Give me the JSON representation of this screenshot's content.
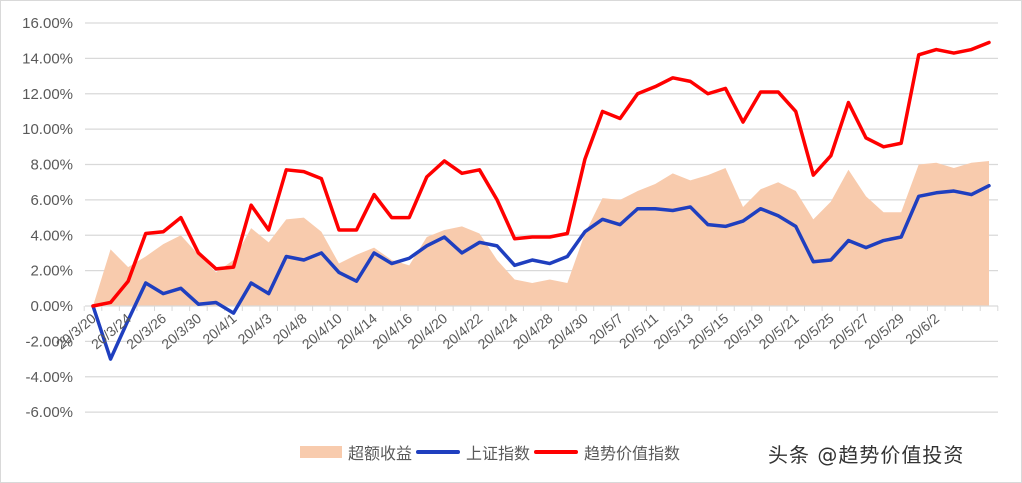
{
  "chart_data": {
    "type": "line",
    "title": "",
    "xlabel": "",
    "ylabel": "",
    "ylim": [
      -0.06,
      0.16
    ],
    "y_ticks": [
      "16.00%",
      "14.00%",
      "12.00%",
      "10.00%",
      "8.00%",
      "6.00%",
      "4.00%",
      "2.00%",
      "0.00%",
      "-2.00%",
      "-4.00%",
      "-6.00%"
    ],
    "y_tick_values": [
      16,
      14,
      12,
      10,
      8,
      6,
      4,
      2,
      0,
      -2,
      -4,
      -6
    ],
    "grid": true,
    "legend_position": "bottom",
    "x_tick_labels": [
      "20/3/20",
      "20/3/24",
      "20/3/26",
      "20/3/30",
      "20/4/1",
      "20/4/3",
      "20/4/8",
      "20/4/10",
      "20/4/14",
      "20/4/16",
      "20/4/20",
      "20/4/22",
      "20/4/24",
      "20/4/28",
      "20/4/30",
      "20/5/7",
      "20/5/11",
      "20/5/13",
      "20/5/15",
      "20/5/19",
      "20/5/21",
      "20/5/25",
      "20/5/27",
      "20/5/29",
      "20/6/2"
    ],
    "x_count": 52,
    "series": [
      {
        "name": "超额收益",
        "type": "area",
        "color": "#f8cbad",
        "values": [
          0,
          3.2,
          2.2,
          2.8,
          3.5,
          4.0,
          2.9,
          1.9,
          2.6,
          4.4,
          3.6,
          4.9,
          5.0,
          4.2,
          2.4,
          2.9,
          3.3,
          2.6,
          2.3,
          3.9,
          4.3,
          4.5,
          4.1,
          2.6,
          1.5,
          1.3,
          1.5,
          1.3,
          4.1,
          6.1,
          6.0,
          6.5,
          6.9,
          7.5,
          7.1,
          7.4,
          7.8,
          5.6,
          6.6,
          7.0,
          6.5,
          4.9,
          5.9,
          7.7,
          6.2,
          5.3,
          5.3,
          8.0,
          8.1,
          7.8,
          8.1,
          8.2
        ]
      },
      {
        "name": "上证指数",
        "type": "line",
        "color": "#1f3fbf",
        "values": [
          0,
          -3.0,
          -0.8,
          1.3,
          0.7,
          1.0,
          0.1,
          0.2,
          -0.4,
          1.3,
          0.7,
          2.8,
          2.6,
          3.0,
          1.9,
          1.4,
          3.0,
          2.4,
          2.7,
          3.4,
          3.9,
          3.0,
          3.6,
          3.4,
          2.3,
          2.6,
          2.4,
          2.8,
          4.2,
          4.9,
          4.6,
          5.5,
          5.5,
          5.4,
          5.6,
          4.6,
          4.5,
          4.8,
          5.5,
          5.1,
          4.5,
          2.5,
          2.6,
          3.7,
          3.3,
          3.7,
          3.9,
          6.2,
          6.4,
          6.5,
          6.3,
          6.8
        ]
      },
      {
        "name": "趋势价值指数",
        "type": "line",
        "color": "#ff0000",
        "values": [
          0,
          0.2,
          1.4,
          4.1,
          4.2,
          5.0,
          3.0,
          2.1,
          2.2,
          5.7,
          4.3,
          7.7,
          7.6,
          7.2,
          4.3,
          4.3,
          6.3,
          5.0,
          5.0,
          7.3,
          8.2,
          7.5,
          7.7,
          6.0,
          3.8,
          3.9,
          3.9,
          4.1,
          8.3,
          11.0,
          10.6,
          12.0,
          12.4,
          12.9,
          12.7,
          12.0,
          12.3,
          10.4,
          12.1,
          12.1,
          11.0,
          7.4,
          8.5,
          11.5,
          9.5,
          9.0,
          9.2,
          14.2,
          14.5,
          14.3,
          14.5,
          14.9
        ]
      }
    ]
  },
  "legend": {
    "items": [
      {
        "label": "超额收益",
        "color": "#f8cbad"
      },
      {
        "label": "上证指数",
        "color": "#1f3fbf"
      },
      {
        "label": "趋势价值指数",
        "color": "#ff0000"
      }
    ]
  },
  "watermark": "头条 @趋势价值投资"
}
